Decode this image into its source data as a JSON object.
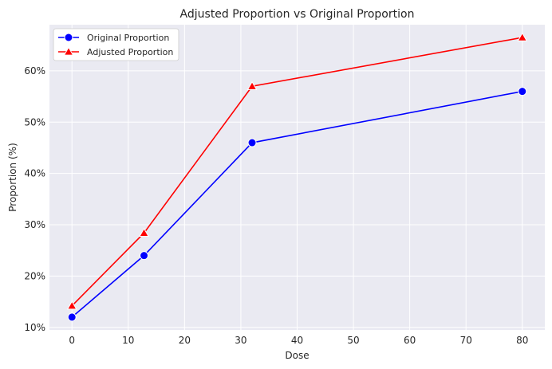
{
  "chart_data": {
    "type": "line",
    "title": "Adjusted Proportion vs Original Proportion",
    "xlabel": "Dose",
    "ylabel": "Proportion (%)",
    "xlim": [
      -4,
      84
    ],
    "ylim": [
      9.5,
      69
    ],
    "x_ticks": [
      0,
      10,
      20,
      30,
      40,
      50,
      60,
      70,
      80
    ],
    "y_ticks": [
      10,
      20,
      30,
      40,
      50,
      60
    ],
    "y_tick_format": "{v}%",
    "grid": true,
    "legend_position": "top-left",
    "x": [
      0,
      12.8,
      32,
      80
    ],
    "series": [
      {
        "name": "Original Proportion",
        "values": [
          12,
          24,
          46,
          56
        ],
        "color": "#0000ff",
        "marker": "circle"
      },
      {
        "name": "Adjusted Proportion",
        "values": [
          14.2,
          28.4,
          57,
          66.5
        ],
        "color": "#ff0000",
        "marker": "triangle"
      }
    ]
  }
}
